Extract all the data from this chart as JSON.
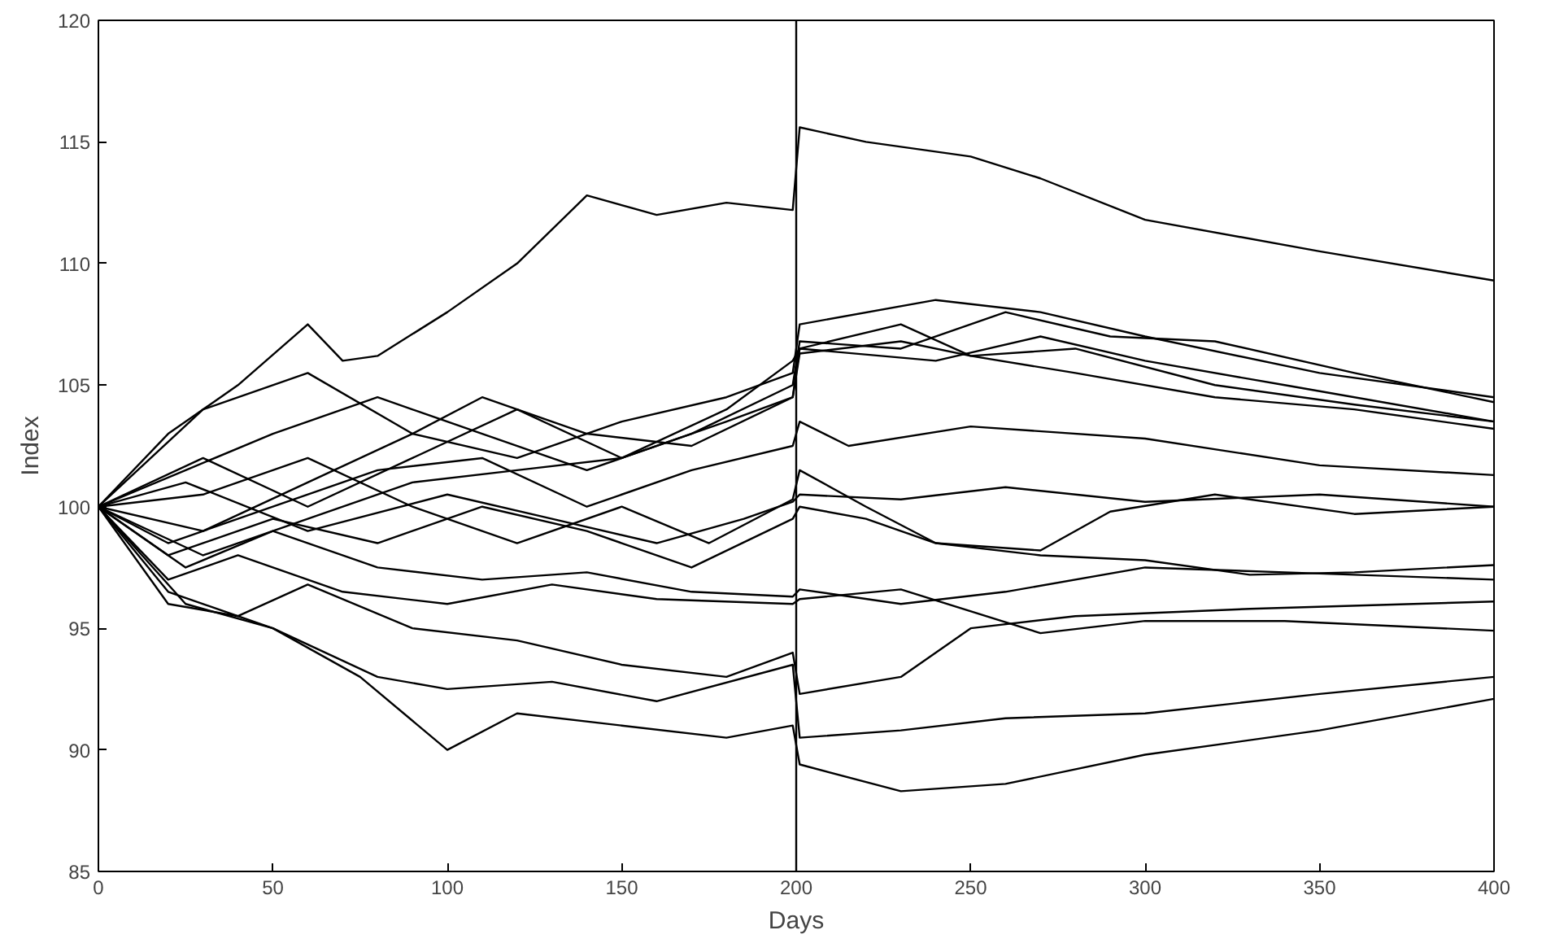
{
  "chart_data": {
    "type": "line",
    "xlabel": "Days",
    "ylabel": "Index",
    "xlim": [
      0,
      400
    ],
    "ylim": [
      85,
      120
    ],
    "xticks": [
      0,
      50,
      100,
      150,
      200,
      250,
      300,
      350,
      400
    ],
    "yticks": [
      85,
      90,
      95,
      100,
      105,
      110,
      115,
      120
    ],
    "grid": false,
    "line_style": "solid",
    "marker": "none",
    "ref_lines": [
      {
        "axis": "x",
        "value": 200,
        "color": "#000000"
      }
    ],
    "series": [
      {
        "color": "#000000",
        "x": [
          0,
          20,
          40,
          60,
          70,
          80,
          100,
          120,
          140,
          160,
          180,
          199,
          201,
          220,
          250,
          270,
          300,
          350,
          400
        ],
        "values": [
          100,
          103,
          105,
          107.5,
          106,
          106.2,
          108,
          110,
          112.8,
          112,
          112.5,
          112.2,
          115.6,
          115,
          114.4,
          113.5,
          111.8,
          110.5,
          109.3
        ]
      },
      {
        "color": "#000000",
        "x": [
          0,
          30,
          60,
          90,
          120,
          150,
          180,
          199,
          201,
          240,
          270,
          300,
          350,
          400
        ],
        "values": [
          100,
          104,
          105.5,
          103,
          102,
          103.5,
          104.5,
          105.5,
          107.5,
          108.5,
          108,
          107,
          105.5,
          104.5
        ]
      },
      {
        "color": "#000000",
        "x": [
          0,
          25,
          50,
          80,
          110,
          140,
          170,
          199,
          201,
          230,
          260,
          290,
          320,
          360,
          400
        ],
        "values": [
          100,
          101.5,
          103,
          104.5,
          103,
          101.5,
          103,
          105,
          106.8,
          106.5,
          108,
          107,
          106.8,
          105.5,
          104.3
        ]
      },
      {
        "color": "#000000",
        "x": [
          0,
          30,
          60,
          90,
          120,
          150,
          180,
          199,
          201,
          240,
          270,
          300,
          340,
          400
        ],
        "values": [
          100,
          102,
          100,
          102,
          104,
          102,
          104,
          106,
          106.5,
          106,
          107,
          106,
          105,
          103.5
        ]
      },
      {
        "color": "#000000",
        "x": [
          0,
          30,
          60,
          90,
          110,
          140,
          170,
          199,
          201,
          230,
          250,
          280,
          320,
          360,
          400
        ],
        "values": [
          100,
          99,
          101,
          103,
          104.5,
          103,
          102.5,
          104.5,
          106.3,
          106.8,
          106.2,
          105.5,
          104.5,
          104,
          103.2
        ]
      },
      {
        "color": "#000000",
        "x": [
          0,
          20,
          50,
          80,
          110,
          140,
          170,
          199,
          201,
          215,
          250,
          300,
          350,
          400
        ],
        "values": [
          100,
          98.5,
          100,
          101.5,
          102,
          100,
          101.5,
          102.5,
          103.5,
          102.5,
          103.3,
          102.8,
          101.7,
          101.3
        ]
      },
      {
        "color": "#000000",
        "x": [
          0,
          25,
          60,
          100,
          130,
          160,
          185,
          199,
          201,
          230,
          260,
          300,
          350,
          400
        ],
        "values": [
          100,
          101,
          99,
          100.5,
          99.5,
          98.5,
          99.5,
          100.2,
          100.5,
          100.3,
          100.8,
          100.2,
          100.5,
          100
        ]
      },
      {
        "color": "#000000",
        "x": [
          0,
          30,
          60,
          90,
          120,
          150,
          175,
          199,
          201,
          220,
          240,
          270,
          290,
          320,
          360,
          400
        ],
        "values": [
          100,
          100.5,
          102,
          100,
          98.5,
          100,
          98.5,
          100.3,
          101.5,
          100,
          98.5,
          98.2,
          99.8,
          100.5,
          99.7,
          100
        ]
      },
      {
        "color": "#000000",
        "x": [
          0,
          20,
          50,
          80,
          110,
          140,
          170,
          199,
          201,
          220,
          240,
          270,
          300,
          330,
          360,
          400
        ],
        "values": [
          100,
          98,
          99.5,
          98.5,
          100,
          99,
          97.5,
          99.5,
          100,
          99.5,
          98.5,
          98,
          97.8,
          97.2,
          97.3,
          97.6
        ]
      },
      {
        "color": "#000000",
        "x": [
          0,
          25,
          50,
          80,
          110,
          140,
          170,
          199,
          201,
          230,
          260,
          300,
          340,
          400
        ],
        "values": [
          100,
          97.5,
          99,
          97.5,
          97,
          97.3,
          96.5,
          96.3,
          96.6,
          96,
          96.5,
          97.5,
          97.3,
          97
        ]
      },
      {
        "color": "#000000",
        "x": [
          0,
          20,
          40,
          70,
          100,
          130,
          160,
          199,
          201,
          230,
          270,
          300,
          340,
          400
        ],
        "values": [
          100,
          97,
          98,
          96.5,
          96,
          96.8,
          96.2,
          96,
          96.2,
          96.6,
          94.8,
          95.3,
          95.3,
          94.9
        ]
      },
      {
        "color": "#000000",
        "x": [
          0,
          20,
          40,
          60,
          90,
          120,
          150,
          180,
          199,
          201,
          230,
          250,
          280,
          330,
          400
        ],
        "values": [
          100,
          96,
          95.5,
          96.8,
          95,
          94.5,
          93.5,
          93,
          94,
          92.3,
          93,
          95,
          95.5,
          95.8,
          96.1
        ]
      },
      {
        "color": "#000000",
        "x": [
          0,
          20,
          50,
          80,
          100,
          130,
          160,
          199,
          201,
          230,
          260,
          300,
          350,
          400
        ],
        "values": [
          100,
          96.5,
          95,
          93,
          92.5,
          92.8,
          92,
          93.5,
          90.5,
          90.8,
          91.3,
          91.5,
          92.3,
          93
        ]
      },
      {
        "color": "#000000",
        "x": [
          0,
          25,
          50,
          75,
          100,
          120,
          150,
          180,
          199,
          201,
          230,
          260,
          300,
          350,
          400
        ],
        "values": [
          100,
          96,
          95,
          93,
          90,
          91.5,
          91,
          90.5,
          91,
          89.4,
          88.3,
          88.6,
          89.8,
          90.8,
          92.1
        ]
      },
      {
        "color": "#000000",
        "x": [
          0,
          30,
          60,
          90,
          120,
          150,
          180,
          199,
          201,
          230,
          250,
          280,
          320,
          360,
          400
        ],
        "values": [
          100,
          98,
          99.5,
          101,
          101.5,
          102,
          103.5,
          104.5,
          106.5,
          107.5,
          106.2,
          106.5,
          105,
          104.2,
          103.5
        ]
      }
    ]
  }
}
